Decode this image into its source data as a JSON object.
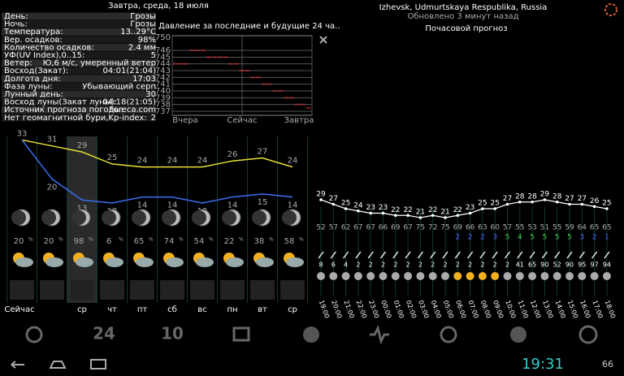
{
  "header": {
    "title": "Завтра, среда, 18 июля"
  },
  "details": [
    [
      "День:",
      "Грозы"
    ],
    [
      "Ночь:",
      "Грозы"
    ],
    [
      "Температура:",
      "13..29°C"
    ],
    [
      "Вер. осадков:",
      "98%"
    ],
    [
      "Количество осадков:",
      "2.4 мм"
    ],
    [
      "УФ(UV Index),0..15:",
      "5"
    ],
    [
      "Ветер:",
      "Ю,6 м/с, умеренный ветер"
    ],
    [
      "Восход(Закат):",
      "04:01(21:04)"
    ],
    [
      "Долгота дня:",
      "17:03"
    ],
    [
      "Фаза луны:",
      "Убывающий серп"
    ],
    [
      "Лунный день:",
      "30"
    ],
    [
      "Восход луны(Закат луны):",
      "04:18(21:05)"
    ],
    [
      "Источник прогноза погоды:",
      "Foreca.com"
    ],
    [
      "Нет геомагнитной бури,Kp-index:",
      "2"
    ]
  ],
  "location": {
    "place": "Izhevsk, Udmurtskaya Respublika, Russia",
    "updated": "Обновлено 3 минут назад",
    "hourly_title": "Почасовой прогноз"
  },
  "toolbar": {
    "hours": "24",
    "days": "10"
  },
  "status_bar": {
    "time": "19:31",
    "battery": "66"
  },
  "chart_data": [
    {
      "type": "line",
      "title": "Давление за последние и будущие 24 ча..",
      "color": "#e03030",
      "values": [
        744,
        744,
        744,
        746,
        746,
        746,
        745,
        745,
        745,
        745,
        744,
        744,
        743,
        743,
        742,
        742,
        741,
        741,
        740,
        740,
        739,
        739,
        738,
        738,
        737.5
      ],
      "xlabels": [
        "Вчера",
        "Сейчас",
        "Завтра"
      ],
      "ylim": [
        737,
        746
      ],
      "yticks": [
        737,
        738,
        739,
        740,
        741,
        742,
        743,
        744,
        745,
        746
      ],
      "top_label": "750",
      "grid": true
    },
    {
      "type": "line",
      "categories": [
        "Сейчас",
        null,
        "ср",
        "чт",
        "пт",
        "сб",
        "вс",
        "пн",
        "вт",
        "ср"
      ],
      "series": [
        {
          "color": "#e8e030",
          "values": [
            33,
            31,
            29,
            25,
            24,
            24,
            24,
            26,
            27,
            24
          ]
        },
        {
          "color": "#3a6ef0",
          "values": [
            33,
            20,
            13,
            12,
            14,
            14,
            12,
            14,
            15,
            14
          ]
        }
      ],
      "precipitation": [
        20,
        20,
        98,
        6,
        65,
        74,
        54,
        22,
        38,
        58
      ],
      "precipitation_unit": "%"
    },
    {
      "type": "line",
      "categories": [
        "19:00",
        "20:00",
        "21:00",
        "22:00",
        "23:00",
        "00:00",
        "01:00",
        "02:00",
        "03:00",
        "04:00",
        "05:00",
        "06:00",
        "07:00",
        "08:00",
        "09:00",
        "10:00",
        "11:00",
        "12:00",
        "13:00",
        "14:00",
        "15:00",
        "16:00",
        "17:00",
        "18:00"
      ],
      "series": [
        {
          "color": "#ffffff",
          "values": [
            29,
            27,
            25,
            24,
            23,
            23,
            22,
            22,
            21,
            22,
            21,
            22,
            23,
            25,
            25,
            27,
            28,
            28,
            29,
            28,
            27,
            27,
            26,
            25
          ]
        }
      ],
      "humidity": [
        52,
        57,
        62,
        67,
        67,
        66,
        69,
        67,
        75,
        72,
        75,
        69,
        66,
        63,
        60,
        57,
        55,
        53,
        51,
        55,
        59,
        64,
        65,
        65
      ],
      "uv": [
        null,
        null,
        null,
        null,
        null,
        null,
        null,
        null,
        null,
        null,
        null,
        2,
        2,
        2,
        3,
        5,
        4,
        5,
        5,
        5,
        5,
        3,
        2,
        1
      ],
      "precipitation": [
        8,
        6,
        4,
        2,
        2,
        2,
        2,
        2,
        2,
        2,
        2,
        2,
        2,
        2,
        2,
        2,
        41,
        65,
        90,
        52,
        90,
        95,
        97,
        94
      ]
    }
  ]
}
